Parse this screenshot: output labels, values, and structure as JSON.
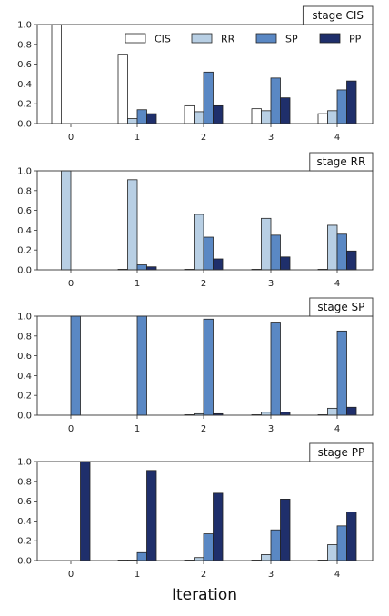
{
  "figure": {
    "xlabel": "Iteration",
    "legend": {
      "entries": [
        {
          "label": "CIS",
          "color": "#ffffff"
        },
        {
          "label": "RR",
          "color": "#b8cfe4"
        },
        {
          "label": "SP",
          "color": "#5a88c4"
        },
        {
          "label": "PP",
          "color": "#1f2f6b"
        }
      ]
    }
  },
  "chart_data": [
    {
      "type": "bar",
      "title": "stage CIS",
      "categories": [
        "0",
        "1",
        "2",
        "3",
        "4"
      ],
      "ylim": [
        0,
        1.0
      ],
      "yticks": [
        "0.0",
        "0.2",
        "0.4",
        "0.6",
        "0.8",
        "1.0"
      ],
      "series": [
        {
          "name": "CIS",
          "values": [
            1.0,
            0.7,
            0.18,
            0.15,
            0.1
          ]
        },
        {
          "name": "RR",
          "values": [
            0.0,
            0.05,
            0.12,
            0.13,
            0.13
          ]
        },
        {
          "name": "SP",
          "values": [
            0.0,
            0.14,
            0.52,
            0.46,
            0.34
          ]
        },
        {
          "name": "PP",
          "values": [
            0.0,
            0.1,
            0.18,
            0.26,
            0.43
          ]
        }
      ]
    },
    {
      "type": "bar",
      "title": "stage RR",
      "categories": [
        "0",
        "1",
        "2",
        "3",
        "4"
      ],
      "ylim": [
        0,
        1.0
      ],
      "yticks": [
        "0.0",
        "0.2",
        "0.4",
        "0.6",
        "0.8",
        "1.0"
      ],
      "series": [
        {
          "name": "CIS",
          "values": [
            0.0,
            0.005,
            0.005,
            0.005,
            0.005
          ]
        },
        {
          "name": "RR",
          "values": [
            1.0,
            0.91,
            0.56,
            0.52,
            0.45
          ]
        },
        {
          "name": "SP",
          "values": [
            0.0,
            0.05,
            0.33,
            0.35,
            0.36
          ]
        },
        {
          "name": "PP",
          "values": [
            0.0,
            0.03,
            0.11,
            0.13,
            0.19
          ]
        }
      ]
    },
    {
      "type": "bar",
      "title": "stage SP",
      "categories": [
        "0",
        "1",
        "2",
        "3",
        "4"
      ],
      "ylim": [
        0,
        1.0
      ],
      "yticks": [
        "0.0",
        "0.2",
        "0.4",
        "0.6",
        "0.8",
        "1.0"
      ],
      "series": [
        {
          "name": "CIS",
          "values": [
            0.0,
            0.0,
            0.005,
            0.005,
            0.005
          ]
        },
        {
          "name": "RR",
          "values": [
            0.0,
            0.0,
            0.015,
            0.03,
            0.07
          ]
        },
        {
          "name": "SP",
          "values": [
            1.0,
            1.0,
            0.97,
            0.94,
            0.85
          ]
        },
        {
          "name": "PP",
          "values": [
            0.0,
            0.0,
            0.015,
            0.03,
            0.08
          ]
        }
      ]
    },
    {
      "type": "bar",
      "title": "stage PP",
      "categories": [
        "0",
        "1",
        "2",
        "3",
        "4"
      ],
      "ylim": [
        0,
        1.0
      ],
      "yticks": [
        "0.0",
        "0.2",
        "0.4",
        "0.6",
        "0.8",
        "1.0"
      ],
      "series": [
        {
          "name": "CIS",
          "values": [
            0.0,
            0.005,
            0.005,
            0.005,
            0.005
          ]
        },
        {
          "name": "RR",
          "values": [
            0.0,
            0.005,
            0.03,
            0.06,
            0.16
          ]
        },
        {
          "name": "SP",
          "values": [
            0.0,
            0.08,
            0.27,
            0.31,
            0.35
          ]
        },
        {
          "name": "PP",
          "values": [
            1.0,
            0.91,
            0.68,
            0.62,
            0.49
          ]
        }
      ]
    }
  ]
}
